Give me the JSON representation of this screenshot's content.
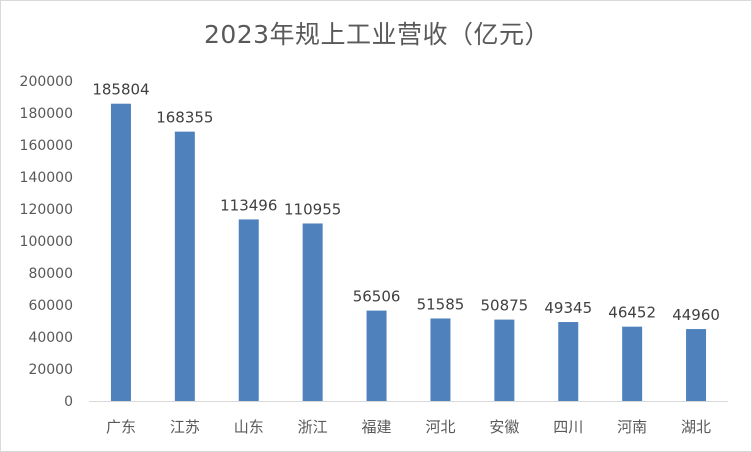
{
  "chart_data": {
    "type": "bar",
    "title": "2023年规上工业营收（亿元）",
    "xlabel": "",
    "ylabel": "",
    "categories": [
      "广东",
      "江苏",
      "山东",
      "浙江",
      "福建",
      "河北",
      "安徽",
      "四川",
      "河南",
      "湖北"
    ],
    "values": [
      185804,
      168355,
      113496,
      110955,
      56506,
      51585,
      50875,
      49345,
      46452,
      44960
    ],
    "ylim": [
      0,
      200000
    ],
    "yticks": [
      0,
      20000,
      40000,
      60000,
      80000,
      100000,
      120000,
      140000,
      160000,
      180000,
      200000
    ],
    "grid": false,
    "legend": "none",
    "bar_color": "#4f81bd",
    "data_labels": true
  }
}
